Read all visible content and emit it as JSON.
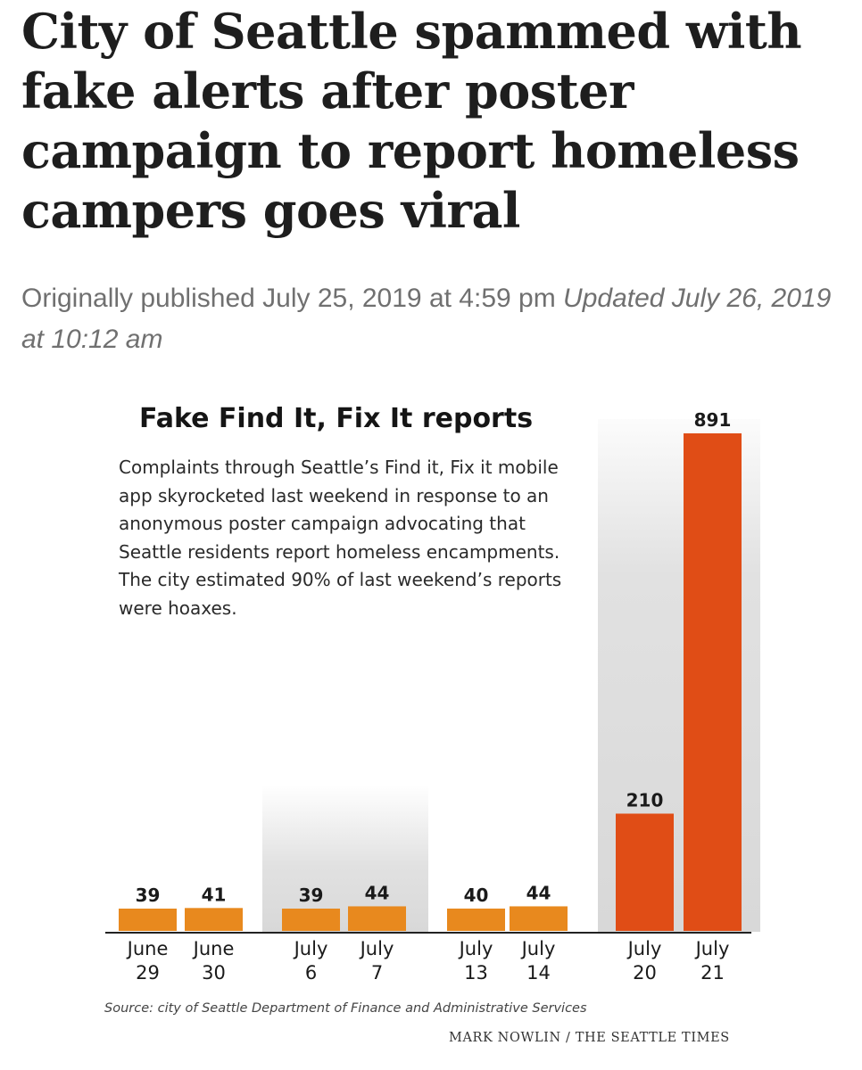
{
  "article": {
    "headline": "City of Seattle spammed with fake alerts after poster campaign to report homeless campers goes viral",
    "published": "Originally published July 25, 2019 at 4:59 pm",
    "updated": "Updated July 26, 2019 at 10:12 am"
  },
  "chart_data": {
    "type": "bar",
    "title": "Fake Find It, Fix It reports",
    "description": "Complaints through Seattle’s Find it, Fix it mobile app skyrocketed last weekend in response to an anonymous poster campaign advocating that Seattle residents report homeless encampments. The city estimated 90% of last weekend’s reports were hoaxes.",
    "categories": [
      [
        "June",
        "29"
      ],
      [
        "June",
        "30"
      ],
      [
        "July",
        "6"
      ],
      [
        "July",
        "7"
      ],
      [
        "July",
        "13"
      ],
      [
        "July",
        "14"
      ],
      [
        "July",
        "20"
      ],
      [
        "July",
        "21"
      ]
    ],
    "values": [
      39,
      41,
      39,
      44,
      40,
      44,
      210,
      891
    ],
    "colors": [
      "#e8891e",
      "#e8891e",
      "#e8891e",
      "#e8891e",
      "#e8891e",
      "#e8891e",
      "#e04d16",
      "#e04d16"
    ],
    "highlighted_weekends": [
      "July 6–7",
      "July 20–21"
    ],
    "grid": false,
    "source": "Source: city of Seattle Department of Finance and Administrative Services",
    "credit": "MARK NOWLIN / THE SEATTLE TIMES"
  }
}
